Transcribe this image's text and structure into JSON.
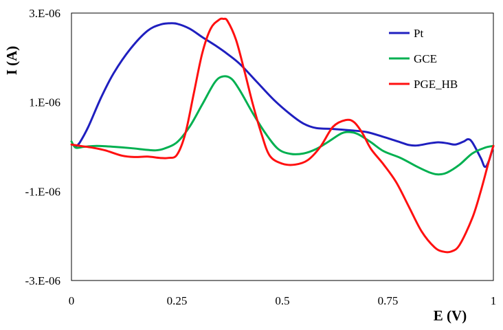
{
  "chart_data": {
    "type": "line",
    "title": "",
    "xlabel": "E (V)",
    "ylabel": "I (A)",
    "xlim": [
      0,
      1
    ],
    "ylim": [
      -3e-06,
      3e-06
    ],
    "x_ticks": [
      {
        "value": 0,
        "label": "0"
      },
      {
        "value": 0.25,
        "label": "0.25"
      },
      {
        "value": 0.5,
        "label": "0.5"
      },
      {
        "value": 0.75,
        "label": "0.75"
      },
      {
        "value": 1,
        "label": "1"
      }
    ],
    "y_ticks": [
      {
        "value": 3e-06,
        "label": "3.E-06"
      },
      {
        "value": 1e-06,
        "label": "1.E-06"
      },
      {
        "value": -1e-06,
        "label": "-1.E-06"
      },
      {
        "value": -3e-06,
        "label": "-3.E-06"
      }
    ],
    "grid": false,
    "legend_position": "top-right",
    "series": [
      {
        "name": "Pt",
        "color": "#1f1fbf",
        "points": [
          [
            0.01,
            0.0
          ],
          [
            0.02,
            1e-07
          ],
          [
            0.04,
            4.5e-07
          ],
          [
            0.07,
            1.1e-06
          ],
          [
            0.1,
            1.65e-06
          ],
          [
            0.14,
            2.2e-06
          ],
          [
            0.18,
            2.6e-06
          ],
          [
            0.21,
            2.74e-06
          ],
          [
            0.23,
            2.77e-06
          ],
          [
            0.25,
            2.76e-06
          ],
          [
            0.28,
            2.65e-06
          ],
          [
            0.31,
            2.46e-06
          ],
          [
            0.34,
            2.28e-06
          ],
          [
            0.37,
            2.08e-06
          ],
          [
            0.4,
            1.85e-06
          ],
          [
            0.44,
            1.45e-06
          ],
          [
            0.48,
            1.05e-06
          ],
          [
            0.52,
            7.2e-07
          ],
          [
            0.55,
            5.2e-07
          ],
          [
            0.58,
            4.2e-07
          ],
          [
            0.62,
            4e-07
          ],
          [
            0.66,
            3.7e-07
          ],
          [
            0.7,
            3.3e-07
          ],
          [
            0.74,
            2.2e-07
          ],
          [
            0.78,
            1e-07
          ],
          [
            0.8,
            4e-08
          ],
          [
            0.82,
            3e-08
          ],
          [
            0.85,
            8e-08
          ],
          [
            0.87,
            1e-07
          ],
          [
            0.89,
            8e-08
          ],
          [
            0.91,
            5e-08
          ],
          [
            0.93,
            1.2e-07
          ],
          [
            0.94,
            1.7e-07
          ],
          [
            0.95,
            1e-07
          ],
          [
            0.97,
            -2.5e-07
          ],
          [
            0.98,
            -4.5e-07
          ],
          [
            0.99,
            -3e-07
          ],
          [
            1.0,
            2e-08
          ]
        ]
      },
      {
        "name": "GCE",
        "color": "#00b050",
        "points": [
          [
            0.0,
            1.2e-07
          ],
          [
            0.01,
            -2e-08
          ],
          [
            0.03,
            0.0
          ],
          [
            0.06,
            2e-08
          ],
          [
            0.1,
            0.0
          ],
          [
            0.14,
            -3e-08
          ],
          [
            0.18,
            -7e-08
          ],
          [
            0.2,
            -8e-08
          ],
          [
            0.22,
            -4e-08
          ],
          [
            0.25,
            1e-07
          ],
          [
            0.28,
            4.5e-07
          ],
          [
            0.31,
            9.5e-07
          ],
          [
            0.34,
            1.45e-06
          ],
          [
            0.36,
            1.58e-06
          ],
          [
            0.38,
            1.52e-06
          ],
          [
            0.4,
            1.25e-06
          ],
          [
            0.43,
            7.5e-07
          ],
          [
            0.46,
            3e-07
          ],
          [
            0.49,
            -5e-08
          ],
          [
            0.52,
            -1.6e-07
          ],
          [
            0.55,
            -1.5e-07
          ],
          [
            0.58,
            -5e-08
          ],
          [
            0.61,
            1.2e-07
          ],
          [
            0.64,
            3e-07
          ],
          [
            0.66,
            3.3e-07
          ],
          [
            0.68,
            2.8e-07
          ],
          [
            0.71,
            1e-07
          ],
          [
            0.74,
            -1e-07
          ],
          [
            0.78,
            -2.5e-07
          ],
          [
            0.82,
            -4.5e-07
          ],
          [
            0.85,
            -5.8e-07
          ],
          [
            0.87,
            -6.2e-07
          ],
          [
            0.89,
            -5.8e-07
          ],
          [
            0.92,
            -4e-07
          ],
          [
            0.95,
            -1.5e-07
          ],
          [
            0.98,
            -2e-08
          ],
          [
            1.0,
            2e-08
          ]
        ]
      },
      {
        "name": "PGE_HB",
        "color": "#ff1010",
        "points": [
          [
            0.0,
            5e-08
          ],
          [
            0.02,
            2e-08
          ],
          [
            0.05,
            -2e-08
          ],
          [
            0.08,
            -8e-08
          ],
          [
            0.12,
            -2e-07
          ],
          [
            0.15,
            -2.3e-07
          ],
          [
            0.18,
            -2.2e-07
          ],
          [
            0.21,
            -2.5e-07
          ],
          [
            0.23,
            -2.5e-07
          ],
          [
            0.25,
            -1.8e-07
          ],
          [
            0.27,
            3e-07
          ],
          [
            0.29,
            1.2e-06
          ],
          [
            0.31,
            2.1e-06
          ],
          [
            0.33,
            2.65e-06
          ],
          [
            0.35,
            2.85e-06
          ],
          [
            0.36,
            2.87e-06
          ],
          [
            0.37,
            2.82e-06
          ],
          [
            0.39,
            2.4e-06
          ],
          [
            0.41,
            1.7e-06
          ],
          [
            0.43,
            9.5e-07
          ],
          [
            0.45,
            3e-07
          ],
          [
            0.47,
            -2e-07
          ],
          [
            0.5,
            -3.8e-07
          ],
          [
            0.53,
            -4e-07
          ],
          [
            0.56,
            -3e-07
          ],
          [
            0.59,
            0.0
          ],
          [
            0.62,
            4.5e-07
          ],
          [
            0.65,
            6e-07
          ],
          [
            0.67,
            5.5e-07
          ],
          [
            0.69,
            3e-07
          ],
          [
            0.71,
            -5e-08
          ],
          [
            0.74,
            -4e-07
          ],
          [
            0.77,
            -8e-07
          ],
          [
            0.8,
            -1.35e-06
          ],
          [
            0.83,
            -1.9e-06
          ],
          [
            0.86,
            -2.25e-06
          ],
          [
            0.88,
            -2.35e-06
          ],
          [
            0.9,
            -2.35e-06
          ],
          [
            0.92,
            -2.2e-06
          ],
          [
            0.95,
            -1.6e-06
          ],
          [
            0.97,
            -1e-06
          ],
          [
            0.99,
            -3e-07
          ],
          [
            1.0,
            2e-08
          ]
        ]
      }
    ]
  }
}
